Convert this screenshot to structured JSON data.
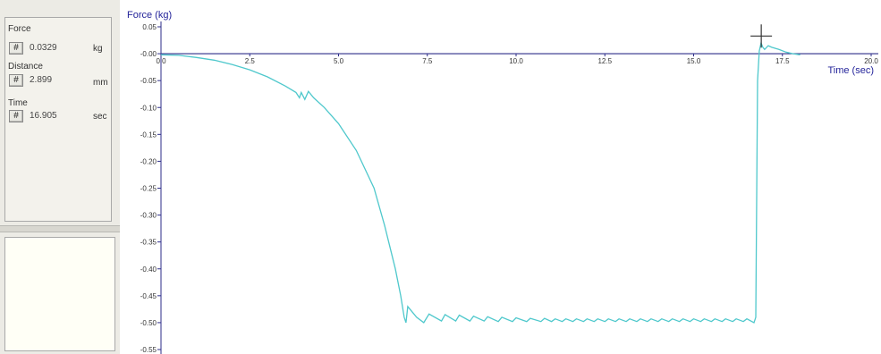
{
  "readouts": {
    "force": {
      "label": "Force",
      "button": "#",
      "value": "0.0329",
      "unit": "kg"
    },
    "distance": {
      "label": "Distance",
      "button": "#",
      "value": "2.899",
      "unit": "mm"
    },
    "time": {
      "label": "Time",
      "button": "#",
      "value": "16.905",
      "unit": "sec"
    }
  },
  "colors": {
    "trace": "#4fc8cc",
    "axis": "#2e2e8a",
    "axis_title": "#24249a"
  },
  "chart_data": {
    "type": "line",
    "xlabel": "Time (sec)",
    "ylabel": "Force (kg)",
    "xlim": [
      0,
      20
    ],
    "ylim": [
      -0.55,
      0.05
    ],
    "x_ticks": [
      "0.0",
      "2.5",
      "5.0",
      "7.5",
      "10.0",
      "12.5",
      "15.0",
      "17.5",
      "20.0"
    ],
    "y_ticks": [
      "0.05",
      "-0.00",
      "-0.05",
      "-0.10",
      "-0.15",
      "-0.20",
      "-0.25",
      "-0.30",
      "-0.35",
      "-0.40",
      "-0.45",
      "-0.50",
      "-0.55"
    ],
    "cursor": {
      "x": 16.905,
      "y": 0.0329
    },
    "series": [
      {
        "points": [
          [
            0,
            -0.002
          ],
          [
            0.5,
            -0.003
          ],
          [
            1.0,
            -0.007
          ],
          [
            1.5,
            -0.012
          ],
          [
            2.0,
            -0.02
          ],
          [
            2.5,
            -0.03
          ],
          [
            3.0,
            -0.043
          ],
          [
            3.5,
            -0.06
          ],
          [
            3.8,
            -0.072
          ],
          [
            3.9,
            -0.082
          ],
          [
            3.95,
            -0.072
          ],
          [
            4.05,
            -0.085
          ],
          [
            4.15,
            -0.07
          ],
          [
            4.3,
            -0.082
          ],
          [
            4.6,
            -0.1
          ],
          [
            5.0,
            -0.13
          ],
          [
            5.5,
            -0.18
          ],
          [
            6.0,
            -0.25
          ],
          [
            6.3,
            -0.32
          ],
          [
            6.6,
            -0.4
          ],
          [
            6.75,
            -0.45
          ],
          [
            6.85,
            -0.49
          ],
          [
            6.9,
            -0.5
          ],
          [
            6.95,
            -0.47
          ],
          [
            7.2,
            -0.49
          ],
          [
            7.4,
            -0.5
          ],
          [
            7.55,
            -0.484
          ],
          [
            7.9,
            -0.497
          ],
          [
            8.0,
            -0.485
          ],
          [
            8.3,
            -0.497
          ],
          [
            8.4,
            -0.486
          ],
          [
            8.7,
            -0.497
          ],
          [
            8.8,
            -0.488
          ],
          [
            9.1,
            -0.497
          ],
          [
            9.2,
            -0.489
          ],
          [
            9.5,
            -0.498
          ],
          [
            9.6,
            -0.49
          ],
          [
            9.9,
            -0.498
          ],
          [
            10.0,
            -0.491
          ],
          [
            10.3,
            -0.498
          ],
          [
            10.4,
            -0.492
          ],
          [
            10.7,
            -0.498
          ],
          [
            10.8,
            -0.492
          ],
          [
            11.0,
            -0.498
          ],
          [
            11.1,
            -0.493
          ],
          [
            11.3,
            -0.498
          ],
          [
            11.4,
            -0.493
          ],
          [
            11.6,
            -0.498
          ],
          [
            11.7,
            -0.493
          ],
          [
            11.9,
            -0.498
          ],
          [
            12.0,
            -0.493
          ],
          [
            12.2,
            -0.498
          ],
          [
            12.3,
            -0.493
          ],
          [
            12.5,
            -0.498
          ],
          [
            12.6,
            -0.493
          ],
          [
            12.8,
            -0.498
          ],
          [
            12.9,
            -0.493
          ],
          [
            13.1,
            -0.498
          ],
          [
            13.2,
            -0.493
          ],
          [
            13.4,
            -0.498
          ],
          [
            13.5,
            -0.493
          ],
          [
            13.7,
            -0.498
          ],
          [
            13.8,
            -0.493
          ],
          [
            14.0,
            -0.498
          ],
          [
            14.1,
            -0.493
          ],
          [
            14.3,
            -0.498
          ],
          [
            14.4,
            -0.493
          ],
          [
            14.6,
            -0.498
          ],
          [
            14.7,
            -0.493
          ],
          [
            14.9,
            -0.498
          ],
          [
            15.0,
            -0.493
          ],
          [
            15.2,
            -0.498
          ],
          [
            15.3,
            -0.493
          ],
          [
            15.5,
            -0.498
          ],
          [
            15.6,
            -0.493
          ],
          [
            15.8,
            -0.498
          ],
          [
            15.9,
            -0.493
          ],
          [
            16.1,
            -0.498
          ],
          [
            16.2,
            -0.493
          ],
          [
            16.4,
            -0.498
          ],
          [
            16.5,
            -0.493
          ],
          [
            16.7,
            -0.5
          ],
          [
            16.75,
            -0.49
          ],
          [
            16.8,
            -0.05
          ],
          [
            16.85,
            0.005
          ],
          [
            16.9,
            0.02
          ],
          [
            16.95,
            0.012
          ],
          [
            17.0,
            0.008
          ],
          [
            17.1,
            0.015
          ],
          [
            17.2,
            0.012
          ],
          [
            17.4,
            0.008
          ],
          [
            17.6,
            0.003
          ],
          [
            17.8,
            0.0
          ],
          [
            18.0,
            -0.002
          ]
        ]
      }
    ]
  }
}
